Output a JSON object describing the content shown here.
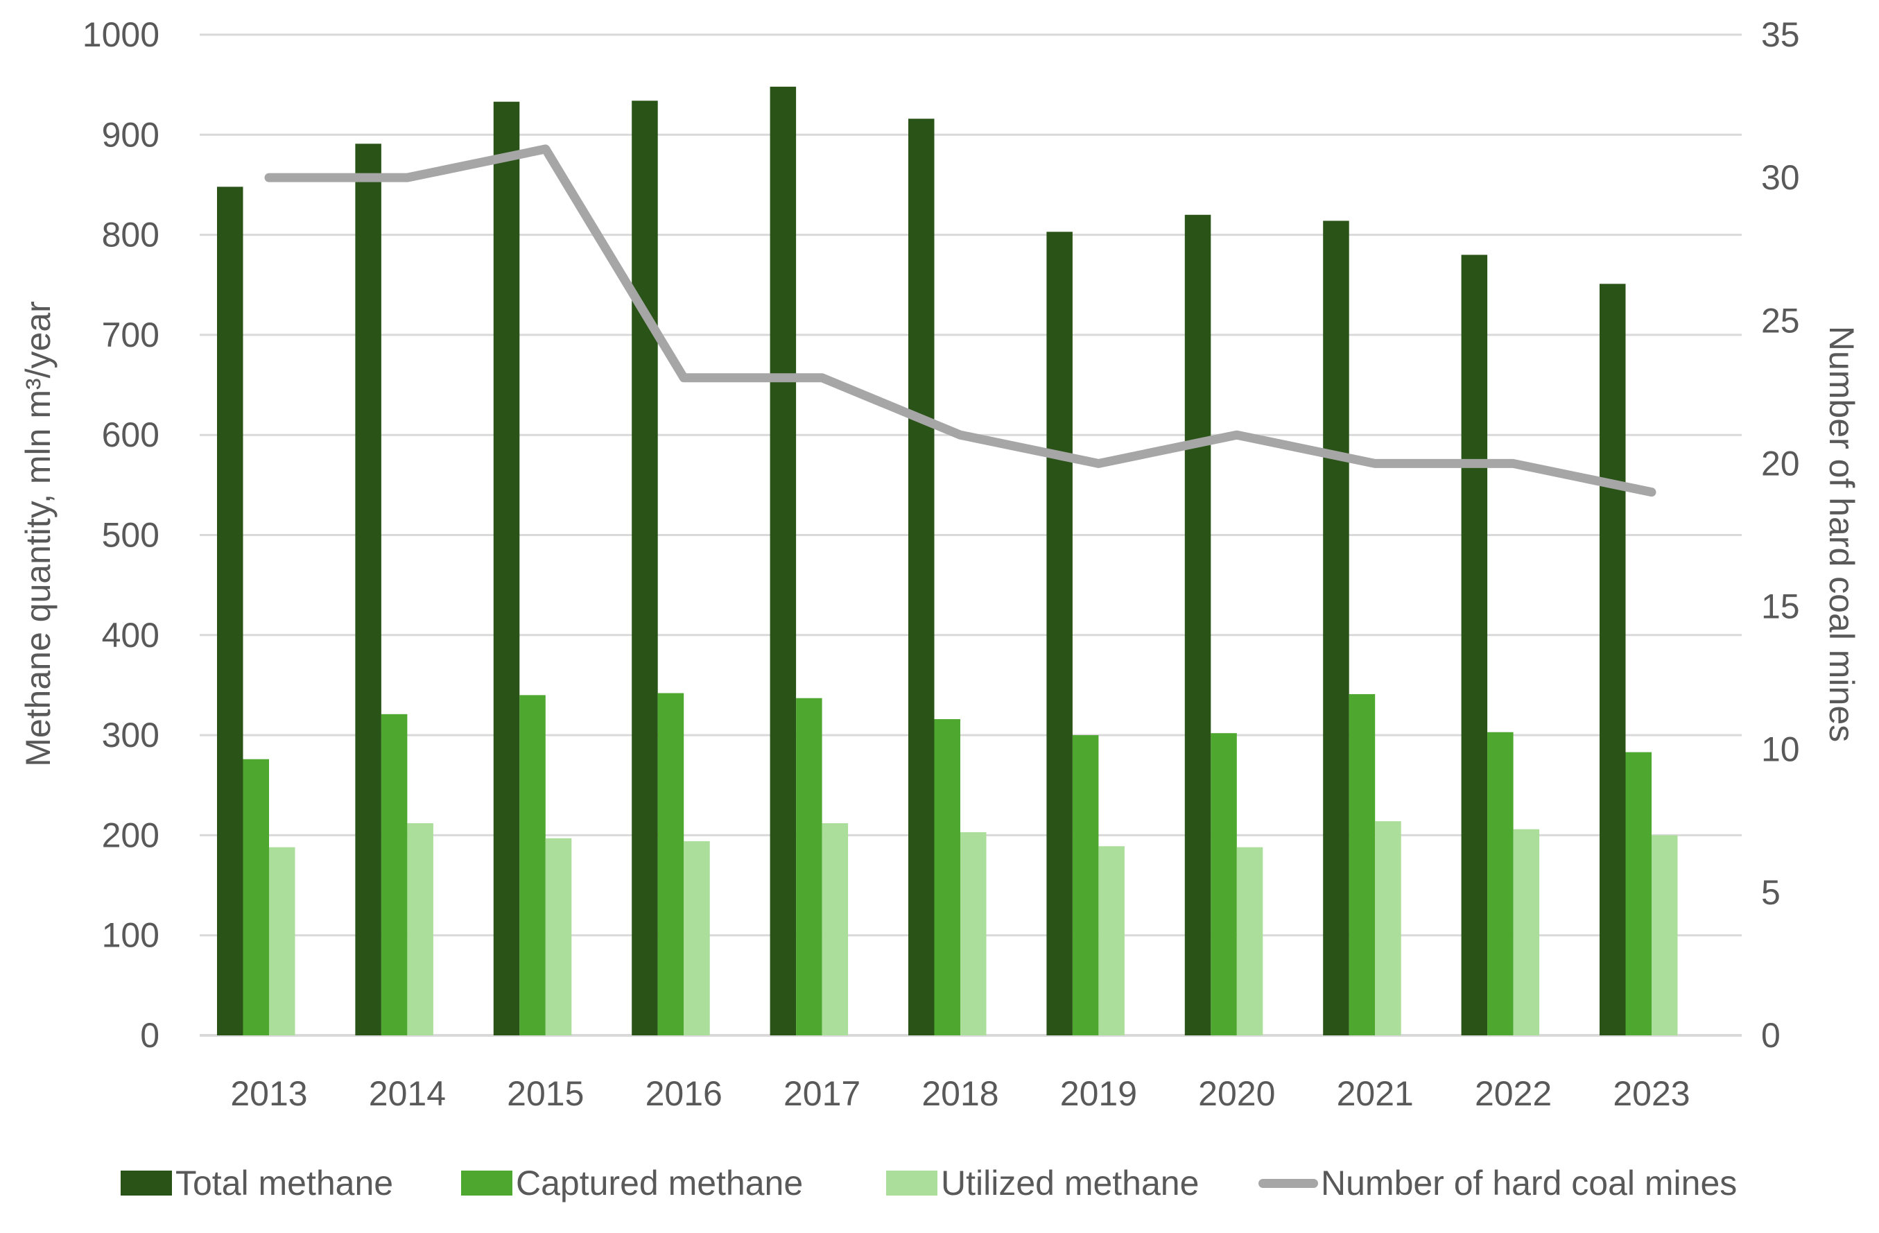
{
  "chart_data": {
    "type": "combo",
    "categories": [
      "2013",
      "2014",
      "2015",
      "2016",
      "2017",
      "2018",
      "2019",
      "2020",
      "2021",
      "2022",
      "2023"
    ],
    "series": [
      {
        "name": "Total methane",
        "type": "bar",
        "axis": "left",
        "color": "#2A5417",
        "values": [
          848,
          891,
          933,
          934,
          948,
          916,
          803,
          820,
          814,
          780,
          751
        ]
      },
      {
        "name": "Captured methane",
        "type": "bar",
        "axis": "left",
        "color": "#4EA72E",
        "values": [
          276,
          321,
          340,
          342,
          337,
          316,
          300,
          302,
          341,
          303,
          283
        ]
      },
      {
        "name": "Utilized methane",
        "type": "bar",
        "axis": "left",
        "color": "#ACDE9B",
        "values": [
          188,
          212,
          197,
          194,
          212,
          203,
          189,
          188,
          214,
          206,
          200
        ]
      },
      {
        "name": "Number of hard coal mines",
        "type": "line",
        "axis": "right",
        "color": "#A6A6A6",
        "values": [
          30,
          30,
          31,
          23,
          23,
          21,
          20,
          21,
          20,
          20,
          19
        ]
      }
    ],
    "left_axis": {
      "label": "Methane quantity, mln m³/year",
      "min": 0,
      "max": 1000,
      "step": 100,
      "ticks": [
        "0",
        "100",
        "200",
        "300",
        "400",
        "500",
        "600",
        "700",
        "800",
        "900",
        "1000"
      ]
    },
    "right_axis": {
      "label": "Number of hard coal mines",
      "min": 0,
      "max": 35,
      "step": 5,
      "ticks": [
        "0",
        "5",
        "10",
        "15",
        "20",
        "25",
        "30",
        "35"
      ]
    },
    "title": "",
    "grid": true,
    "legend_position": "bottom",
    "style": {
      "grid_color": "#D9D9D9",
      "text_color": "#595959",
      "background": "#FFFFFF"
    }
  }
}
